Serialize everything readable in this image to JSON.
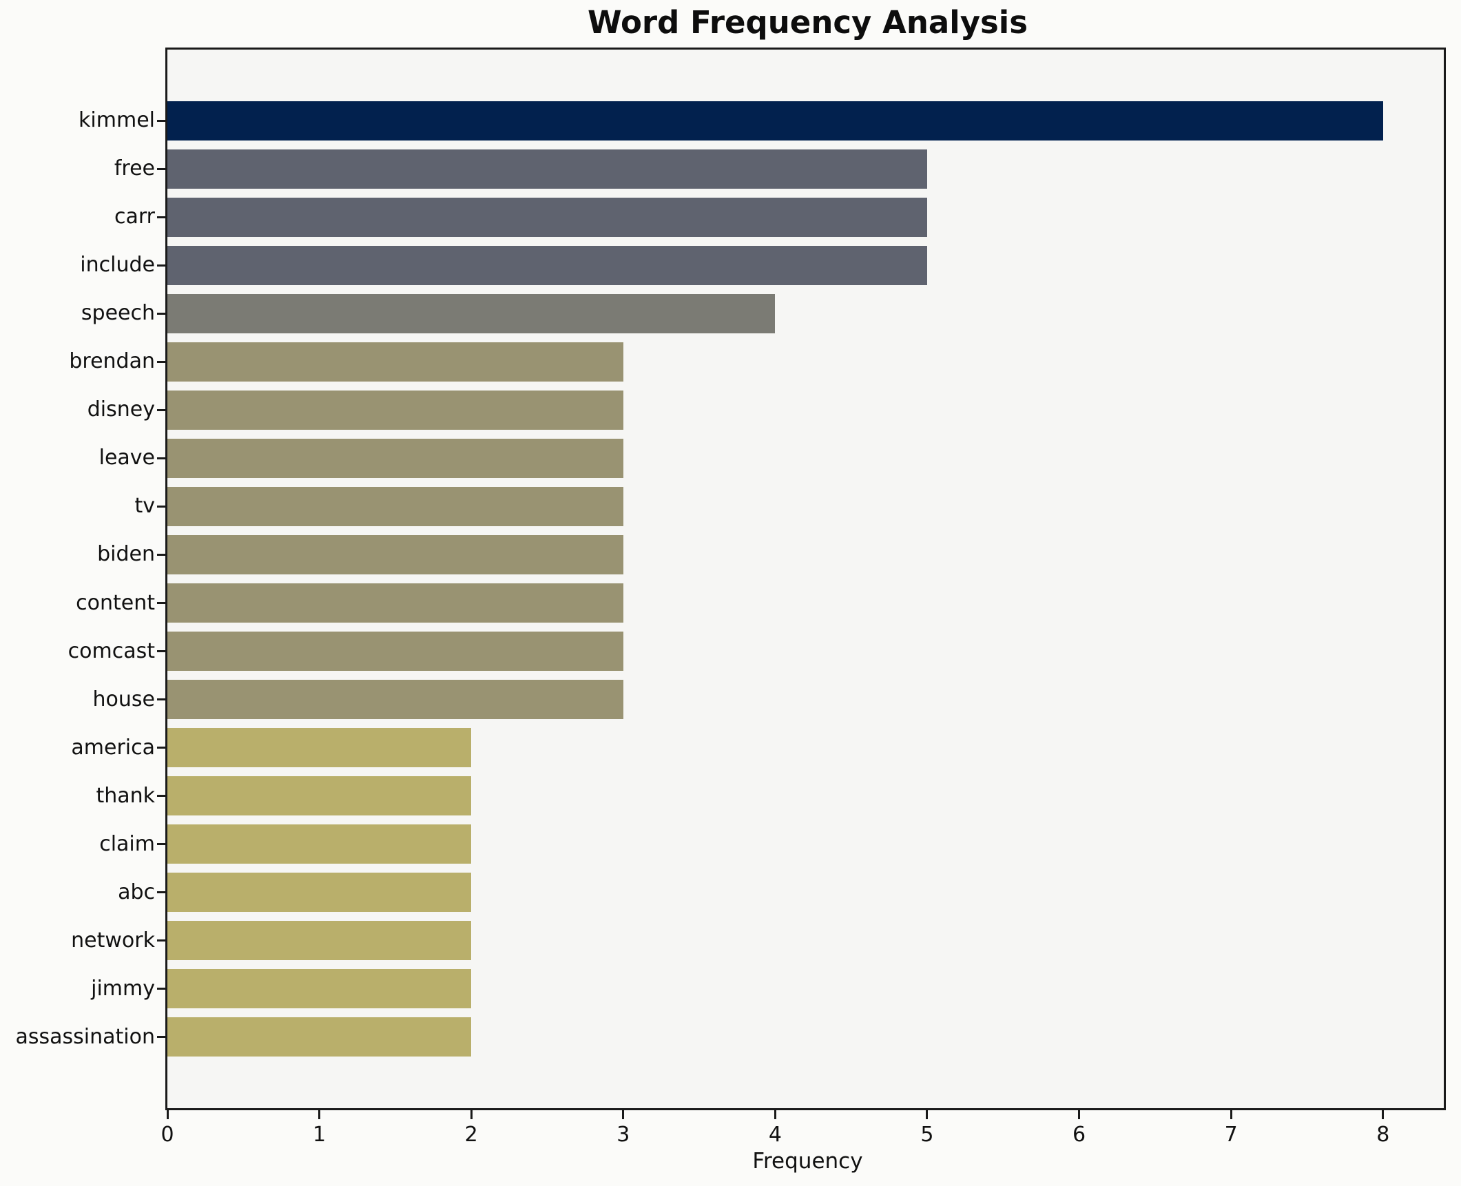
{
  "chart_data": {
    "type": "bar",
    "orientation": "horizontal",
    "title": "Word Frequency Analysis",
    "xlabel": "Frequency",
    "ylabel": "",
    "categories": [
      "kimmel",
      "free",
      "carr",
      "include",
      "speech",
      "brendan",
      "disney",
      "leave",
      "tv",
      "biden",
      "content",
      "comcast",
      "house",
      "america",
      "thank",
      "claim",
      "abc",
      "network",
      "jimmy",
      "assassination"
    ],
    "values": [
      8,
      5,
      5,
      5,
      4,
      3,
      3,
      3,
      3,
      3,
      3,
      3,
      3,
      2,
      2,
      2,
      2,
      2,
      2,
      2
    ],
    "bar_colors": [
      "#02214e",
      "#5f636f",
      "#5f636f",
      "#5f636f",
      "#7b7b74",
      "#999372",
      "#999372",
      "#999372",
      "#999372",
      "#999372",
      "#999372",
      "#999372",
      "#999372",
      "#b9af6b",
      "#b9af6b",
      "#b9af6b",
      "#b9af6b",
      "#b9af6b",
      "#b9af6b",
      "#b9af6b"
    ],
    "xlim": [
      0,
      8.4
    ],
    "x_ticks": [
      0,
      1,
      2,
      3,
      4,
      5,
      6,
      7,
      8
    ],
    "grid": false,
    "legend": null,
    "colors": {
      "figure_background": "#fbfbf9",
      "plot_background": "#f6f6f4",
      "axis_line": "#1a1a1a",
      "text": "#111111"
    }
  }
}
